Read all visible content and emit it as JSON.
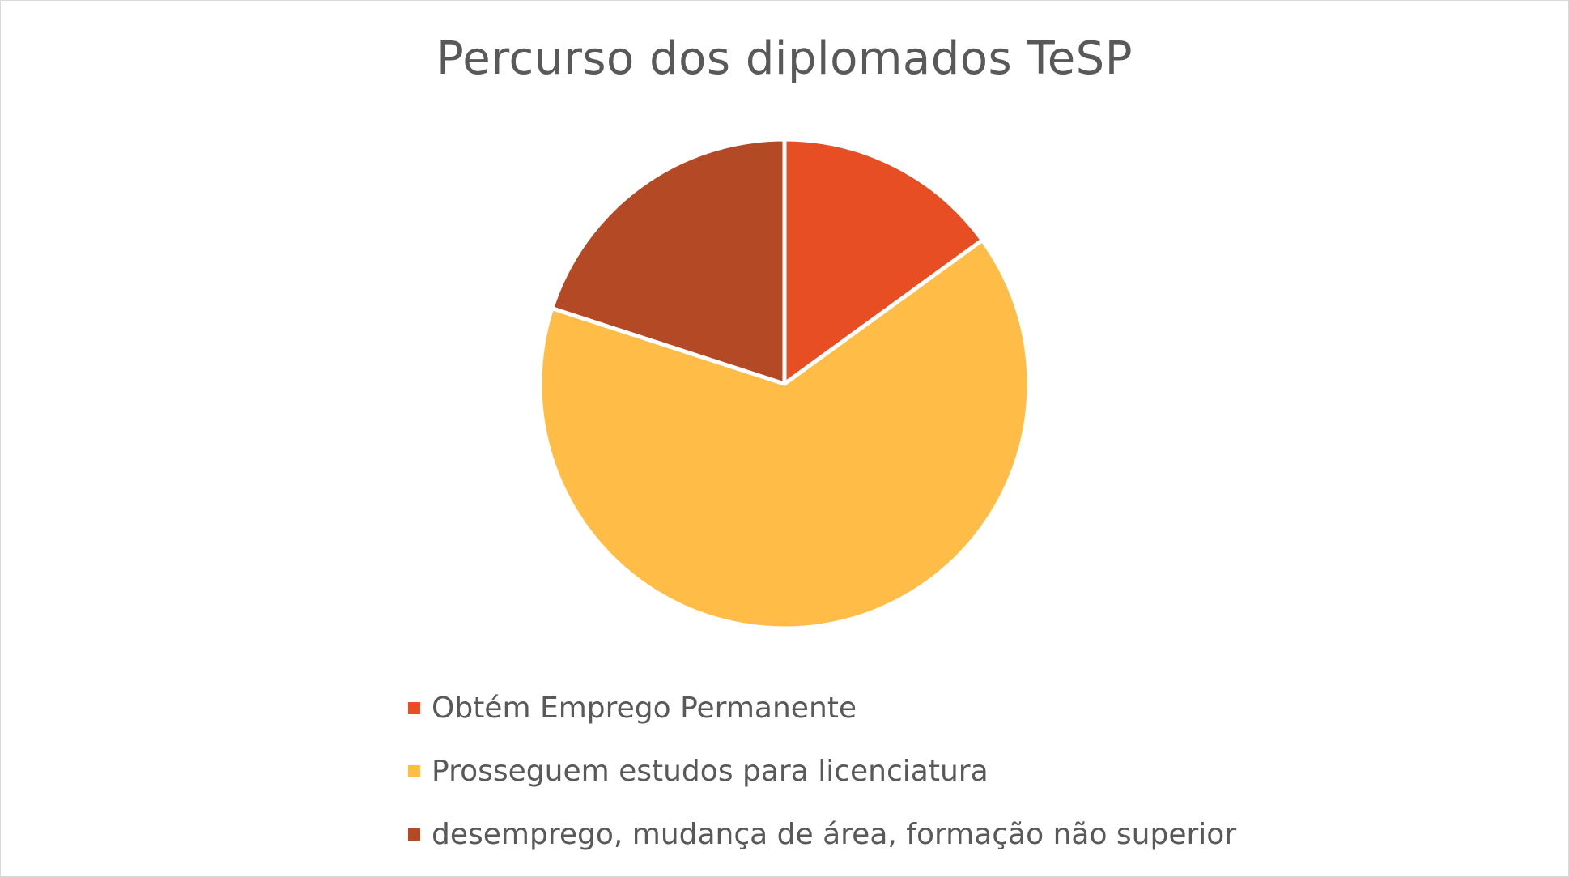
{
  "chart_data": {
    "type": "pie",
    "title": "Percurso dos diplomados TeSP",
    "categories": [
      "Obtém Emprego Permanente",
      "Prosseguem estudos para licenciatura",
      "desemprego, mudança de área, formação não superior"
    ],
    "values": [
      15,
      65,
      20
    ],
    "value_unit": "percent (estimated share of pie)",
    "colors": [
      "#E84E24",
      "#FFBD47",
      "#B34A25"
    ],
    "start_angle": "12 o'clock",
    "direction": "clockwise",
    "slice_border_color": "#FFFFFF",
    "legend_position": "bottom"
  }
}
